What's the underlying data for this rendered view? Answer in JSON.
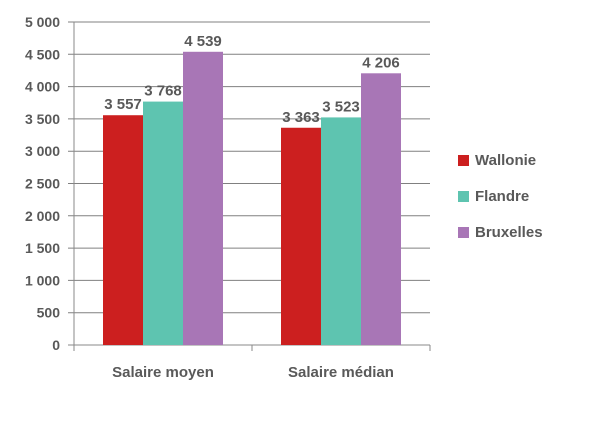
{
  "chart_data": {
    "type": "bar",
    "categories": [
      "Salaire moyen",
      "Salaire médian"
    ],
    "series": [
      {
        "name": "Wallonie",
        "values": [
          3557,
          3363
        ],
        "labels": [
          "3 557",
          "3 363"
        ],
        "color": "#cc1f1f"
      },
      {
        "name": "Flandre",
        "values": [
          3768,
          3523
        ],
        "labels": [
          "3 768",
          "3 523"
        ],
        "color": "#5ec4b0"
      },
      {
        "name": "Bruxelles",
        "values": [
          4539,
          4206
        ],
        "labels": [
          "4 539",
          "4 206"
        ],
        "color": "#a876b6"
      }
    ],
    "yticks": [
      "0",
      "500",
      "1 000",
      "1 500",
      "2 000",
      "2 500",
      "3 000",
      "3 500",
      "4 000",
      "4 500",
      "5 000"
    ],
    "ylim": [
      0,
      5000
    ],
    "ytick_step": 500,
    "grid": true,
    "legend_position": "right"
  }
}
